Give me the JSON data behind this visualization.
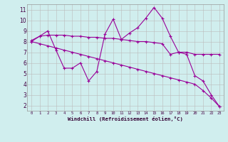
{
  "xlabel": "Windchill (Refroidissement éolien,°C)",
  "bg_color": "#d0eeee",
  "grid_color": "#bbbbbb",
  "line_color": "#990099",
  "xlim": [
    -0.5,
    23.5
  ],
  "ylim": [
    1.5,
    11.5
  ],
  "xticks": [
    0,
    1,
    2,
    3,
    4,
    5,
    6,
    7,
    8,
    9,
    10,
    11,
    12,
    13,
    14,
    15,
    16,
    17,
    18,
    19,
    20,
    21,
    22,
    23
  ],
  "yticks": [
    2,
    3,
    4,
    5,
    6,
    7,
    8,
    9,
    10,
    11
  ],
  "line1_x": [
    0,
    1,
    2,
    3,
    4,
    5,
    6,
    7,
    8,
    9,
    10,
    11,
    12,
    13,
    14,
    15,
    16,
    17,
    18,
    19,
    20,
    21,
    22,
    23
  ],
  "line1_y": [
    8.0,
    8.5,
    9.0,
    7.2,
    5.5,
    5.5,
    6.0,
    4.3,
    5.2,
    8.7,
    10.1,
    8.2,
    8.8,
    9.3,
    10.2,
    11.2,
    10.2,
    8.5,
    7.0,
    6.8,
    4.8,
    4.3,
    3.0,
    1.9
  ],
  "line2_x": [
    0,
    1,
    2,
    3,
    4,
    5,
    6,
    7,
    8,
    9,
    10,
    11,
    12,
    13,
    14,
    15,
    16,
    17,
    18,
    19,
    20,
    21,
    22,
    23
  ],
  "line2_y": [
    8.1,
    8.5,
    8.6,
    8.6,
    8.6,
    8.5,
    8.5,
    8.4,
    8.4,
    8.3,
    8.3,
    8.2,
    8.1,
    8.0,
    8.0,
    7.9,
    7.8,
    6.8,
    7.0,
    7.0,
    6.8,
    6.8,
    6.8,
    6.8
  ],
  "line3_x": [
    0,
    1,
    2,
    3,
    4,
    5,
    6,
    7,
    8,
    9,
    10,
    11,
    12,
    13,
    14,
    15,
    16,
    17,
    18,
    19,
    20,
    21,
    22,
    23
  ],
  "line3_y": [
    8.0,
    7.8,
    7.6,
    7.4,
    7.2,
    7.0,
    6.8,
    6.6,
    6.4,
    6.2,
    6.0,
    5.8,
    5.6,
    5.4,
    5.2,
    5.0,
    4.8,
    4.6,
    4.4,
    4.2,
    4.0,
    3.4,
    2.7,
    1.9
  ],
  "markersize": 3,
  "linewidth": 0.8
}
